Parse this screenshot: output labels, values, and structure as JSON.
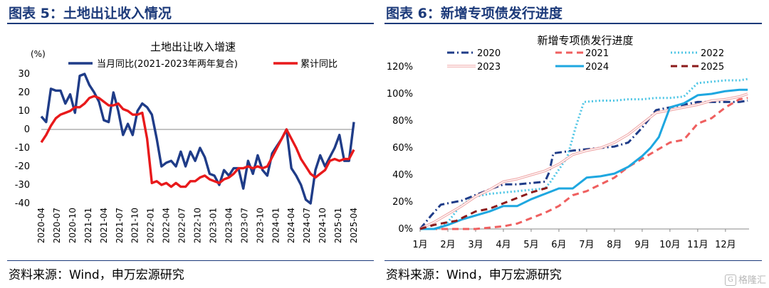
{
  "left_panel": {
    "heading": "图表 5：土地出让收入情况",
    "source": "资料来源：Wind，申万宏源研究"
  },
  "right_panel": {
    "heading": "图表 6：新增专项债发行进度",
    "source": "资料来源：Wind，申万宏源研究"
  },
  "watermark": {
    "logo": "G",
    "text": "格隆汇"
  },
  "chart_data": [
    {
      "type": "line",
      "title": "土地出让收入增速",
      "ylabel": "(%)",
      "ylim": [
        -40,
        30
      ],
      "yticks": [
        30,
        20,
        10,
        0,
        -10,
        -20,
        -30,
        -40
      ],
      "x_labels": [
        "2020-04",
        "2020-07",
        "2020-10",
        "2021-01",
        "2021-04",
        "2021-07",
        "2021-10",
        "2022-01",
        "2022-04",
        "2022-07",
        "2022-10",
        "2023-01",
        "2023-04",
        "2023-07",
        "2023-10",
        "2024-01",
        "2024-04",
        "2024-07",
        "2024-10",
        "2025-01",
        "2025-04"
      ],
      "legend_position": "top",
      "series": [
        {
          "name": "当月同比(2021-2023年两年复合)",
          "color": "#1f3c88",
          "style": "solid",
          "values": [
            7,
            4,
            22,
            21,
            21,
            14,
            19,
            9,
            29,
            30,
            24,
            20,
            15,
            5,
            4,
            20,
            10,
            -3,
            3,
            -3,
            10,
            14,
            12,
            8,
            -5,
            -20,
            -18,
            -17,
            -20,
            -12,
            -20,
            -12,
            -17,
            -10,
            -15,
            -24,
            -25,
            -30,
            -22,
            -25,
            -21,
            -21,
            -32,
            -17,
            -24,
            -14,
            -22,
            -25,
            -13,
            -9,
            -5,
            0,
            -21,
            -25,
            -30,
            -38,
            -40,
            -22,
            -14,
            -20,
            -15,
            -10,
            -3,
            -17,
            -17,
            4
          ]
        },
        {
          "name": "累计同比",
          "color": "#e8191b",
          "style": "solid",
          "values": [
            -7,
            -3,
            2,
            6,
            8,
            9,
            10,
            12,
            12,
            14,
            17,
            18,
            17,
            15,
            13,
            13,
            14,
            11,
            10,
            8,
            8,
            9,
            -5,
            -29,
            -28,
            -30,
            -29,
            -31,
            -29,
            -31,
            -31,
            -28,
            -28,
            -26,
            -25,
            -27,
            -28,
            -29,
            -27,
            -26,
            -24,
            -21,
            -21,
            -20,
            -21,
            -20,
            -21,
            -20,
            -15,
            -10,
            -5,
            0,
            -5,
            -10,
            -16,
            -20,
            -24,
            -26,
            -24,
            -22,
            -17,
            -16,
            -17,
            -16,
            -16,
            -11
          ]
        }
      ]
    },
    {
      "type": "line",
      "title": "新增专项债发行进度",
      "ylim": [
        0,
        120
      ],
      "yticks": [
        "120%",
        "100%",
        "80%",
        "60%",
        "40%",
        "20%",
        "0%"
      ],
      "x_labels": [
        "1月",
        "2月",
        "3月",
        "4月",
        "5月",
        "6月",
        "7月",
        "8月",
        "9月",
        "10月",
        "11月",
        "12月"
      ],
      "x_range": [
        1,
        12.85
      ],
      "legend_position": "top",
      "series": [
        {
          "name": "2020",
          "color": "#1f3c88",
          "style": "dashdot",
          "points": [
            [
              1,
              0
            ],
            [
              1.4,
              10
            ],
            [
              1.75,
              18
            ],
            [
              2,
              19
            ],
            [
              2.5,
              21
            ],
            [
              3.1,
              26
            ],
            [
              3.6,
              30
            ],
            [
              4,
              33
            ],
            [
              4.5,
              33
            ],
            [
              5,
              34
            ],
            [
              5.5,
              35
            ],
            [
              5.65,
              42
            ],
            [
              5.8,
              56
            ],
            [
              6.5,
              58
            ],
            [
              7,
              59
            ],
            [
              7.5,
              60
            ],
            [
              8,
              61
            ],
            [
              8.5,
              64
            ],
            [
              9,
              75
            ],
            [
              9.5,
              88
            ],
            [
              10,
              90
            ],
            [
              10.5,
              92
            ],
            [
              11,
              94
            ],
            [
              11.5,
              94
            ],
            [
              12,
              94
            ],
            [
              12.5,
              94
            ],
            [
              12.8,
              95
            ]
          ]
        },
        {
          "name": "2021",
          "color": "#ef5f5f",
          "style": "dash",
          "points": [
            [
              1,
              0
            ],
            [
              2,
              0
            ],
            [
              3,
              0
            ],
            [
              4,
              2
            ],
            [
              4.5,
              4
            ],
            [
              5,
              8
            ],
            [
              5.5,
              12
            ],
            [
              6,
              17
            ],
            [
              6.5,
              25
            ],
            [
              7,
              28
            ],
            [
              7.5,
              33
            ],
            [
              8,
              38
            ],
            [
              8.5,
              46
            ],
            [
              9,
              52
            ],
            [
              9.5,
              58
            ],
            [
              10,
              64
            ],
            [
              10.5,
              66
            ],
            [
              11,
              78
            ],
            [
              11.5,
              82
            ],
            [
              12,
              90
            ],
            [
              12.5,
              96
            ],
            [
              12.8,
              97
            ]
          ]
        },
        {
          "name": "2022",
          "color": "#4fc6e5",
          "style": "dotted",
          "points": [
            [
              1,
              0
            ],
            [
              1.6,
              0
            ],
            [
              2,
              5
            ],
            [
              2.4,
              16
            ],
            [
              2.8,
              22
            ],
            [
              3,
              24
            ],
            [
              3.5,
              26
            ],
            [
              4,
              27
            ],
            [
              4.5,
              28
            ],
            [
              5,
              29
            ],
            [
              5.5,
              30
            ],
            [
              5.7,
              35
            ],
            [
              6,
              44
            ],
            [
              6.3,
              53
            ],
            [
              6.6,
              75
            ],
            [
              6.9,
              94
            ],
            [
              7.5,
              95
            ],
            [
              8,
              95
            ],
            [
              8.5,
              96
            ],
            [
              9,
              96
            ],
            [
              9.5,
              97
            ],
            [
              10,
              97
            ],
            [
              10.5,
              98
            ],
            [
              11,
              108
            ],
            [
              11.5,
              109
            ],
            [
              12,
              110
            ],
            [
              12.5,
              110
            ],
            [
              12.8,
              111
            ]
          ]
        },
        {
          "name": "2023",
          "color": "#f0a8a8",
          "style": "double",
          "points": [
            [
              1,
              0
            ],
            [
              1.5,
              5
            ],
            [
              2,
              11
            ],
            [
              2.5,
              17
            ],
            [
              3,
              24
            ],
            [
              3.5,
              29
            ],
            [
              4,
              35
            ],
            [
              4.5,
              37
            ],
            [
              5,
              40
            ],
            [
              5.5,
              43
            ],
            [
              6,
              48
            ],
            [
              6.5,
              55
            ],
            [
              7,
              58
            ],
            [
              7.5,
              60
            ],
            [
              8,
              64
            ],
            [
              8.5,
              70
            ],
            [
              9,
              78
            ],
            [
              9.5,
              86
            ],
            [
              10,
              88
            ],
            [
              10.5,
              90
            ],
            [
              11,
              92
            ],
            [
              11.5,
              95
            ],
            [
              12,
              96
            ],
            [
              12.5,
              98
            ],
            [
              12.8,
              100
            ]
          ]
        },
        {
          "name": "2024",
          "color": "#1ea7e0",
          "style": "solid",
          "points": [
            [
              1,
              0
            ],
            [
              1.5,
              0
            ],
            [
              2,
              3
            ],
            [
              2.5,
              7
            ],
            [
              3,
              10
            ],
            [
              3.5,
              13
            ],
            [
              4,
              17
            ],
            [
              4.5,
              17
            ],
            [
              5,
              22
            ],
            [
              5.5,
              26
            ],
            [
              6,
              30
            ],
            [
              6.5,
              30
            ],
            [
              7,
              38
            ],
            [
              7.5,
              39
            ],
            [
              8,
              41
            ],
            [
              8.5,
              46
            ],
            [
              9,
              54
            ],
            [
              9.3,
              60
            ],
            [
              9.6,
              68
            ],
            [
              10,
              90
            ],
            [
              10.5,
              93
            ],
            [
              11,
              99
            ],
            [
              11.5,
              100
            ],
            [
              12,
              102
            ],
            [
              12.5,
              103
            ],
            [
              12.8,
              103
            ]
          ]
        },
        {
          "name": "2025",
          "color": "#8b1a1a",
          "style": "dash",
          "points": [
            [
              1,
              0
            ],
            [
              1.5,
              3
            ],
            [
              2,
              5
            ],
            [
              2.3,
              6
            ],
            [
              2.6,
              9
            ],
            [
              3,
              13
            ],
            [
              3.5,
              15
            ],
            [
              4,
              19
            ],
            [
              4.5,
              23
            ],
            [
              5,
              27
            ],
            [
              5.5,
              30
            ],
            [
              5.65,
              31
            ]
          ]
        }
      ]
    }
  ]
}
